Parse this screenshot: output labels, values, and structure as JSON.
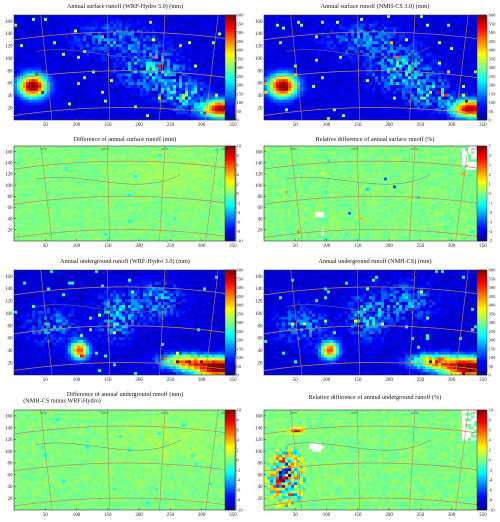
{
  "colors": {
    "jet": [
      "#00008f",
      "#0000ff",
      "#0080ff",
      "#00ffff",
      "#80ff80",
      "#ffff00",
      "#ff8000",
      "#ff0000",
      "#800000"
    ],
    "grid_line": "#c08a55",
    "border_line": "#7a7a7a",
    "missing": "#ffffff"
  },
  "chart_data": [
    {
      "type": "heatmap",
      "title": "Annual surface runoff (WRF-Hydro 3.0) (mm)",
      "xticks": [
        50,
        100,
        150,
        200,
        250,
        300,
        350
      ],
      "yticks": [
        20,
        40,
        60,
        80,
        100,
        120,
        140,
        160
      ],
      "colorbar": {
        "ticks": [
          600,
          550,
          500,
          450,
          400,
          350,
          300,
          250,
          200,
          150,
          100,
          50,
          0
        ],
        "range": [
          0,
          600
        ]
      },
      "lon_labels": [
        "90°E",
        "100°E",
        "110°E",
        "120°E"
      ],
      "field": "runoff_surface"
    },
    {
      "type": "heatmap",
      "title": "Annual surface runoff (NMH-CS 3.0) (mm)",
      "xticks": [
        50,
        100,
        150,
        200,
        250,
        300,
        350
      ],
      "yticks": [
        20,
        40,
        60,
        80,
        100,
        120,
        140,
        160
      ],
      "colorbar": {
        "ticks": [
          600,
          550,
          500,
          450,
          400,
          350,
          300,
          250,
          200,
          150,
          100,
          50,
          0
        ],
        "range": [
          0,
          600
        ]
      },
      "lon_labels": [
        "90°E",
        "100°E",
        "110°E",
        "120°E"
      ],
      "field": "runoff_surface"
    },
    {
      "type": "heatmap",
      "title": "Difference of annual surface runoff (mm)",
      "xticks": [
        50,
        100,
        150,
        200,
        250,
        300,
        350
      ],
      "yticks": [
        20,
        40,
        60,
        80,
        100,
        120,
        140,
        160
      ],
      "colorbar": {
        "ticks": [
          10,
          8,
          6,
          4,
          2,
          0,
          -2,
          -4,
          -6,
          -8,
          -10
        ],
        "range": [
          -10,
          10
        ]
      },
      "lon_labels": [
        "90°E",
        "100°E",
        "110°E",
        "120°E"
      ],
      "field": "difference"
    },
    {
      "type": "heatmap",
      "title": "Relative difference of annual surface runoff (%)",
      "xticks": [
        50,
        100,
        150,
        200,
        250,
        300,
        350
      ],
      "yticks": [
        20,
        40,
        60,
        80,
        100,
        120,
        140,
        160
      ],
      "colorbar": {
        "ticks": [
          5,
          4,
          3,
          2,
          1,
          0,
          -1,
          -2,
          -3,
          -4,
          -5
        ],
        "range": [
          -5,
          5
        ]
      },
      "lon_labels": [
        "90°E",
        "100°E",
        "110°E",
        "120°E"
      ],
      "field": "relative_surface"
    },
    {
      "type": "heatmap",
      "title": "Annual underground runoff (WRF-Hydro 3.0) (mm)",
      "xticks": [
        50,
        100,
        150,
        200,
        250,
        300,
        350
      ],
      "yticks": [
        20,
        40,
        60,
        80,
        100,
        120,
        140,
        160
      ],
      "colorbar": {
        "ticks": [
          600,
          550,
          500,
          450,
          400,
          350,
          300,
          250,
          200,
          150,
          100,
          50,
          0
        ],
        "range": [
          0,
          600
        ]
      },
      "lon_labels": [
        "90°E",
        "100°E",
        "110°E",
        "120°E"
      ],
      "field": "runoff_underground"
    },
    {
      "type": "heatmap",
      "title": "Annual underground runoff (NMH-CS) (mm)",
      "xticks": [
        50,
        100,
        150,
        200,
        250,
        300,
        350
      ],
      "yticks": [
        20,
        40,
        60,
        80,
        100,
        120,
        140,
        160
      ],
      "colorbar": {
        "ticks": [
          600,
          550,
          500,
          450,
          400,
          350,
          300,
          250,
          200,
          150,
          100,
          50,
          0
        ],
        "range": [
          0,
          600
        ]
      },
      "lon_labels": [
        "90°E",
        "100°E",
        "110°E",
        "120°E"
      ],
      "field": "runoff_underground"
    },
    {
      "type": "heatmap",
      "title": "Difference of annual underground runoff (mm)",
      "subtitle": "(NMH-CS minus WRF-Hydro)",
      "xticks": [
        50,
        100,
        150,
        200,
        250,
        300,
        350
      ],
      "yticks": [
        20,
        40,
        60,
        80,
        100,
        120,
        140,
        160
      ],
      "colorbar": {
        "ticks": [
          10,
          8,
          6,
          4,
          2,
          0,
          -2,
          -4,
          -6,
          -8,
          -10
        ],
        "range": [
          -10,
          10
        ]
      },
      "lon_labels": [
        "90°E",
        "100°E",
        "110°E",
        "120°E"
      ],
      "field": "difference"
    },
    {
      "type": "heatmap",
      "title": "Relative difference of annual underground runoff (%)",
      "xticks": [
        50,
        100,
        150,
        200,
        250,
        300,
        350
      ],
      "yticks": [
        20,
        40,
        60,
        80,
        100,
        120,
        140,
        160
      ],
      "colorbar": {
        "ticks": [
          10,
          8,
          6,
          4,
          2,
          0,
          -2,
          -4,
          -6,
          -8,
          -10
        ],
        "range": [
          -10,
          10
        ]
      },
      "lon_labels": [
        "90°E",
        "100°E",
        "110°E",
        "120°E"
      ],
      "field": "relative_underground"
    }
  ]
}
